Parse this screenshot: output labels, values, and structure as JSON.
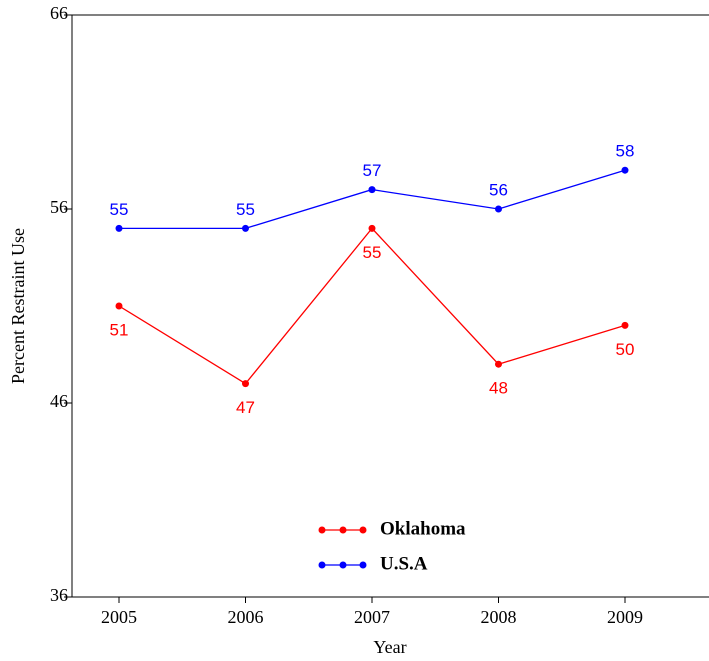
{
  "chart_data": {
    "type": "line",
    "x_label": "Year",
    "y_label": "Percent Restraint Use",
    "categories": [
      "2005",
      "2006",
      "2007",
      "2008",
      "2009"
    ],
    "series": [
      {
        "name": "Oklahoma",
        "color": "#ff0000",
        "values": [
          51,
          47,
          55,
          48,
          50
        ]
      },
      {
        "name": "U.S.A",
        "color": "#0000ff",
        "values": [
          55,
          55,
          57,
          56,
          58
        ]
      }
    ],
    "ylim": [
      36,
      66
    ],
    "yticks": [
      36,
      46,
      56,
      66
    ]
  }
}
